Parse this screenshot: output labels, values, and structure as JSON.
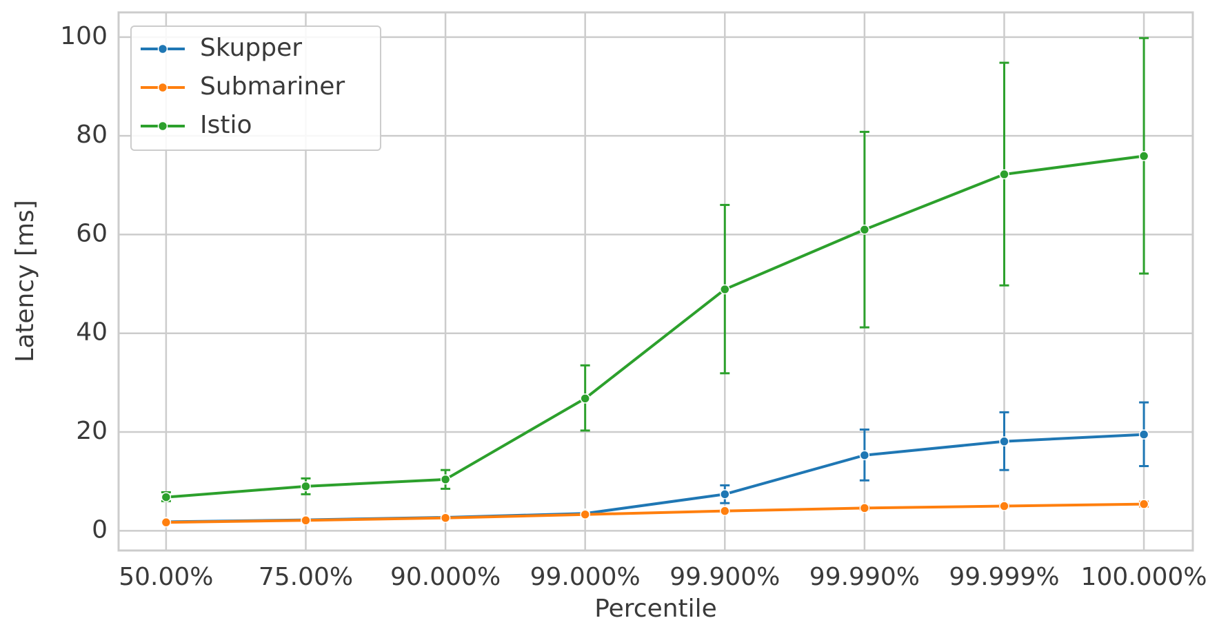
{
  "chart_data": {
    "type": "line",
    "x_label": "Percentile",
    "y_label": "Latency [ms]",
    "categories": [
      "50.00%",
      "75.00%",
      "90.000%",
      "99.000%",
      "99.900%",
      "99.990%",
      "99.999%",
      "100.000%"
    ],
    "series": [
      {
        "name": "Skupper",
        "color": "#1f77b4",
        "values": [
          1.8,
          2.2,
          2.7,
          3.5,
          7.4,
          15.3,
          18.1,
          19.5
        ],
        "lower": [
          1.7,
          2.1,
          2.6,
          3.4,
          5.6,
          10.2,
          12.3,
          13.1
        ],
        "upper": [
          1.9,
          2.3,
          2.8,
          3.6,
          9.2,
          20.5,
          24.0,
          26.0
        ]
      },
      {
        "name": "Submariner",
        "color": "#ff7f0e",
        "values": [
          1.7,
          2.1,
          2.6,
          3.3,
          4.0,
          4.6,
          5.0,
          5.4
        ],
        "lower": [
          1.6,
          2.0,
          2.5,
          3.2,
          3.8,
          4.3,
          4.7,
          4.9
        ],
        "upper": [
          1.8,
          2.2,
          2.7,
          3.4,
          4.2,
          4.9,
          5.3,
          5.9
        ]
      },
      {
        "name": "Istio",
        "color": "#2ca02c",
        "values": [
          6.8,
          9.0,
          10.4,
          26.8,
          48.9,
          61.0,
          72.2,
          75.9
        ],
        "lower": [
          6.0,
          7.4,
          8.5,
          20.3,
          31.9,
          41.2,
          49.7,
          52.1
        ],
        "upper": [
          7.8,
          10.6,
          12.3,
          33.5,
          66.0,
          80.8,
          94.8,
          99.8
        ]
      }
    ],
    "ylim": [
      -4,
      105
    ],
    "yticks": [
      0,
      20,
      40,
      60,
      80,
      100
    ],
    "grid": true,
    "legend": "upper left"
  }
}
